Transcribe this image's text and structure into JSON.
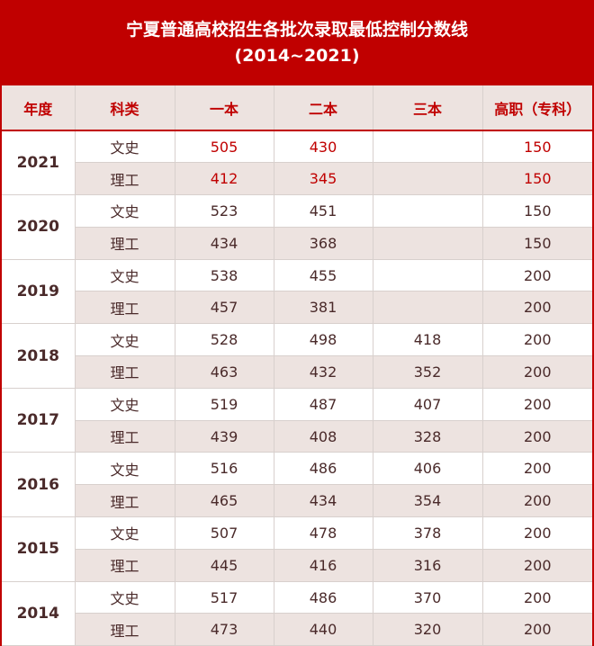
{
  "title_line1": "宁夏普通高校招生各批次录取最低控制分数线",
  "title_line2": "(2014~2021)",
  "headers": [
    "年度",
    "科类",
    "一本",
    "二本",
    "三本",
    "高职（专科）"
  ],
  "colors": {
    "accent": "#c00000",
    "header_bg": "#ede3e0",
    "text": "#4a2a2a"
  },
  "rows": [
    {
      "year": "2021",
      "highlight": true,
      "items": [
        [
          "文史",
          "505",
          "430",
          "",
          "150"
        ],
        [
          "理工",
          "412",
          "345",
          "",
          "150"
        ]
      ]
    },
    {
      "year": "2020",
      "items": [
        [
          "文史",
          "523",
          "451",
          "",
          "150"
        ],
        [
          "理工",
          "434",
          "368",
          "",
          "150"
        ]
      ]
    },
    {
      "year": "2019",
      "items": [
        [
          "文史",
          "538",
          "455",
          "",
          "200"
        ],
        [
          "理工",
          "457",
          "381",
          "",
          "200"
        ]
      ]
    },
    {
      "year": "2018",
      "items": [
        [
          "文史",
          "528",
          "498",
          "418",
          "200"
        ],
        [
          "理工",
          "463",
          "432",
          "352",
          "200"
        ]
      ]
    },
    {
      "year": "2017",
      "items": [
        [
          "文史",
          "519",
          "487",
          "407",
          "200"
        ],
        [
          "理工",
          "439",
          "408",
          "328",
          "200"
        ]
      ]
    },
    {
      "year": "2016",
      "items": [
        [
          "文史",
          "516",
          "486",
          "406",
          "200"
        ],
        [
          "理工",
          "465",
          "434",
          "354",
          "200"
        ]
      ]
    },
    {
      "year": "2015",
      "items": [
        [
          "文史",
          "507",
          "478",
          "378",
          "200"
        ],
        [
          "理工",
          "445",
          "416",
          "316",
          "200"
        ]
      ]
    },
    {
      "year": "2014",
      "items": [
        [
          "文史",
          "517",
          "486",
          "370",
          "200"
        ],
        [
          "理工",
          "473",
          "440",
          "320",
          "200"
        ]
      ]
    }
  ]
}
